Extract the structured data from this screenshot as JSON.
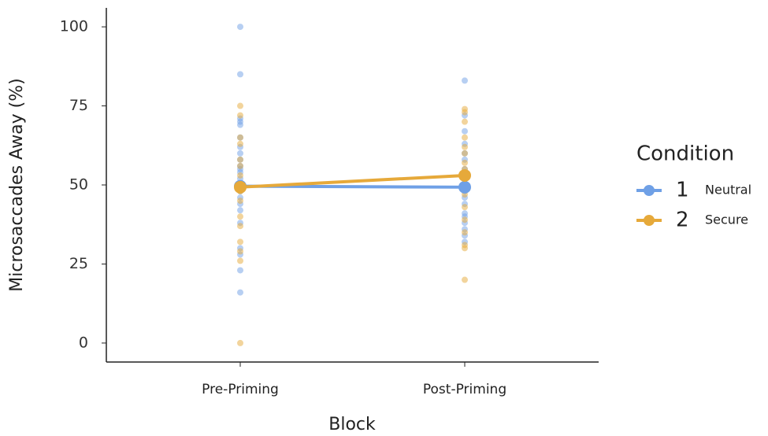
{
  "chart_data": {
    "type": "line",
    "x_label": "Block",
    "y_label": "Microsaccades Away (%)",
    "categories": [
      "Pre-Priming",
      "Post-Priming"
    ],
    "ylim": [
      -6,
      106
    ],
    "yticks": [
      0,
      25,
      50,
      75,
      100
    ],
    "legend_title": "Condition",
    "series": [
      {
        "name": "Neutral",
        "label": "1",
        "color": "#6fa0e6",
        "values": [
          49.6,
          49.3
        ],
        "points": [
          [
            100,
            85,
            71,
            70,
            69,
            65,
            62,
            60,
            58,
            56,
            55,
            54,
            52,
            50,
            48,
            46,
            44,
            42,
            38,
            30,
            28,
            23,
            16
          ],
          [
            83,
            72,
            67,
            63,
            60,
            58,
            55,
            53,
            50,
            48,
            46,
            44,
            41,
            40,
            38,
            36,
            34,
            32
          ]
        ]
      },
      {
        "name": "Secure",
        "label": "2",
        "color": "#e6a93a",
        "values": [
          49.3,
          53
        ],
        "points": [
          [
            75,
            72,
            65,
            63,
            58,
            56,
            53,
            50,
            48,
            45,
            40,
            37,
            32,
            29,
            26,
            0
          ],
          [
            74,
            73,
            70,
            65,
            62,
            60,
            57,
            55,
            52,
            50,
            47,
            43,
            39,
            35,
            31,
            30,
            20
          ]
        ]
      }
    ]
  }
}
